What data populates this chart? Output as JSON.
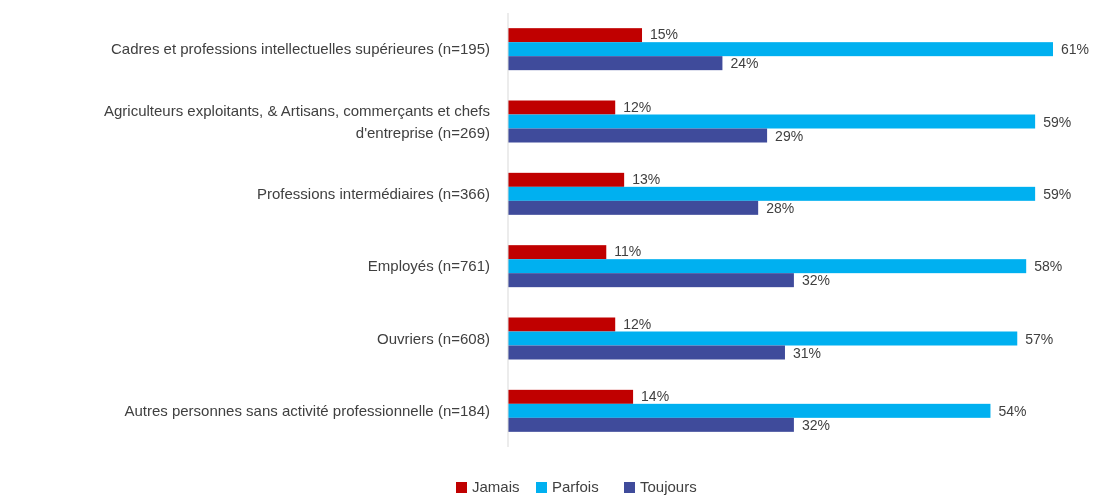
{
  "chart_data": {
    "type": "bar",
    "orientation": "horizontal",
    "categories": [
      "Cadres et professions intellectuelles supérieures (n=195)",
      "Agriculteurs exploitants, & Artisans, commerçants et chefs d'entreprise (n=269)",
      "Professions intermédiaires (n=366)",
      "Employés (n=761)",
      "Ouvriers (n=608)",
      "Autres personnes sans activité professionnelle (n=184)"
    ],
    "series": [
      {
        "name": "Jamais",
        "color": "#c00000",
        "values": [
          15,
          12,
          13,
          11,
          12,
          14
        ],
        "value_labels": [
          "15%",
          "12%",
          "13%",
          "11%",
          "12%",
          "14%"
        ]
      },
      {
        "name": "Parfois",
        "color": "#00b0f0",
        "values": [
          61,
          59,
          59,
          58,
          57,
          54
        ],
        "value_labels": [
          "61%",
          "59%",
          "59%",
          "58%",
          "57%",
          "54%"
        ]
      },
      {
        "name": "Toujours",
        "color": "#3f4b9b",
        "values": [
          24,
          29,
          28,
          32,
          31,
          32
        ],
        "value_labels": [
          "24%",
          "29%",
          "28%",
          "32%",
          "31%",
          "32%"
        ]
      }
    ],
    "legend": "bottom"
  }
}
